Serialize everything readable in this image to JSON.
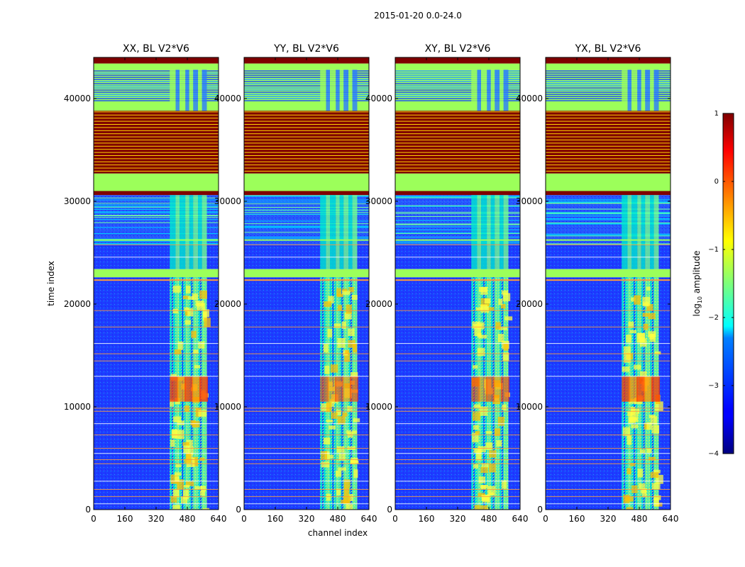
{
  "figure": {
    "suptitle": "2015-01-20 0.0-24.0"
  },
  "chart_data": {
    "type": "heatmap",
    "title": "2015-01-20 0.0-24.0",
    "xlabel": "channel index",
    "ylabel": "time index",
    "xlim": [
      0,
      640
    ],
    "ylim": [
      0,
      44000
    ],
    "xticks": [
      0,
      160,
      320,
      480,
      640
    ],
    "yticks": [
      0,
      10000,
      20000,
      30000,
      40000
    ],
    "panels": [
      {
        "title": "XX, BL V2*V6"
      },
      {
        "title": "YY, BL V2*V6"
      },
      {
        "title": "XY, BL V2*V6"
      },
      {
        "title": "YX, BL V2*V6"
      }
    ],
    "colorbar": {
      "label_prefix": "log",
      "label_sub": "10",
      "label_suffix": " amplitude",
      "range": [
        -4,
        1
      ],
      "ticks": [
        1,
        0,
        -1,
        -2,
        -3,
        -4
      ],
      "tick_labels": [
        "1",
        "0",
        "−1",
        "−2",
        "−3",
        "−4"
      ],
      "colormap": "jet"
    },
    "bands": [
      {
        "t0": 43400,
        "t1": 44000,
        "kind": "flag_dark"
      },
      {
        "t0": 42800,
        "t1": 43400,
        "kind": "flag_green"
      },
      {
        "t0": 38800,
        "t1": 42800,
        "kind": "stripes_low"
      },
      {
        "t0": 32700,
        "t1": 38800,
        "kind": "flag_stripes_red"
      },
      {
        "t0": 31000,
        "t1": 32700,
        "kind": "flag_green"
      },
      {
        "t0": 30600,
        "t1": 31000,
        "kind": "flag_dark"
      },
      {
        "t0": 25800,
        "t1": 30600,
        "kind": "noisy_mid"
      },
      {
        "t0": 23400,
        "t1": 25800,
        "kind": "low"
      },
      {
        "t0": 22600,
        "t1": 23400,
        "kind": "flag_green"
      },
      {
        "t0": 0,
        "t1": 22600,
        "kind": "low"
      }
    ],
    "signal_channel_range": [
      390,
      580
    ],
    "strong_time_range": [
      10500,
      13000
    ]
  }
}
